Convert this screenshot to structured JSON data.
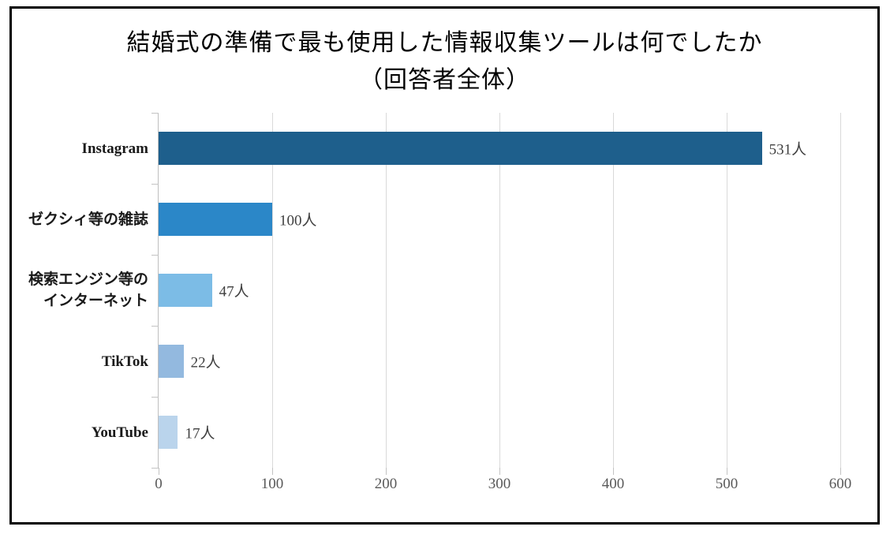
{
  "chart_data": {
    "type": "bar",
    "orientation": "horizontal",
    "title": "結婚式の準備で最も使用した情報収集ツールは何でしたか（回答者全体）",
    "title_lines": {
      "line1": "結婚式の準備で最も使用した情報収集ツールは何でしたか",
      "line2": "（回答者全体）"
    },
    "unit": "人",
    "categories": [
      "Instagram",
      "ゼクシィ等の雑誌",
      "検索エンジン等のインターネット",
      "TikTok",
      "YouTube"
    ],
    "values": [
      531,
      100,
      47,
      22,
      17
    ],
    "xlim": [
      0,
      600
    ],
    "x_ticks": [
      0,
      100,
      200,
      300,
      400,
      500,
      600
    ],
    "grid": true,
    "legend": false,
    "bars": [
      {
        "label_lines": [
          "Instagram"
        ],
        "value": 531,
        "value_label": "531人",
        "color": "#1E5F8C"
      },
      {
        "label_lines": [
          "ゼクシィ等の雑誌"
        ],
        "value": 100,
        "value_label": "100人",
        "color": "#2B87C8"
      },
      {
        "label_lines": [
          "検索エンジン等の",
          "インターネット"
        ],
        "value": 47,
        "value_label": "47人",
        "color": "#7CBCE6"
      },
      {
        "label_lines": [
          "TikTok"
        ],
        "value": 22,
        "value_label": "22人",
        "color": "#93B9DF"
      },
      {
        "label_lines": [
          "YouTube"
        ],
        "value": 17,
        "value_label": "17人",
        "color": "#BAD4EC"
      }
    ]
  }
}
